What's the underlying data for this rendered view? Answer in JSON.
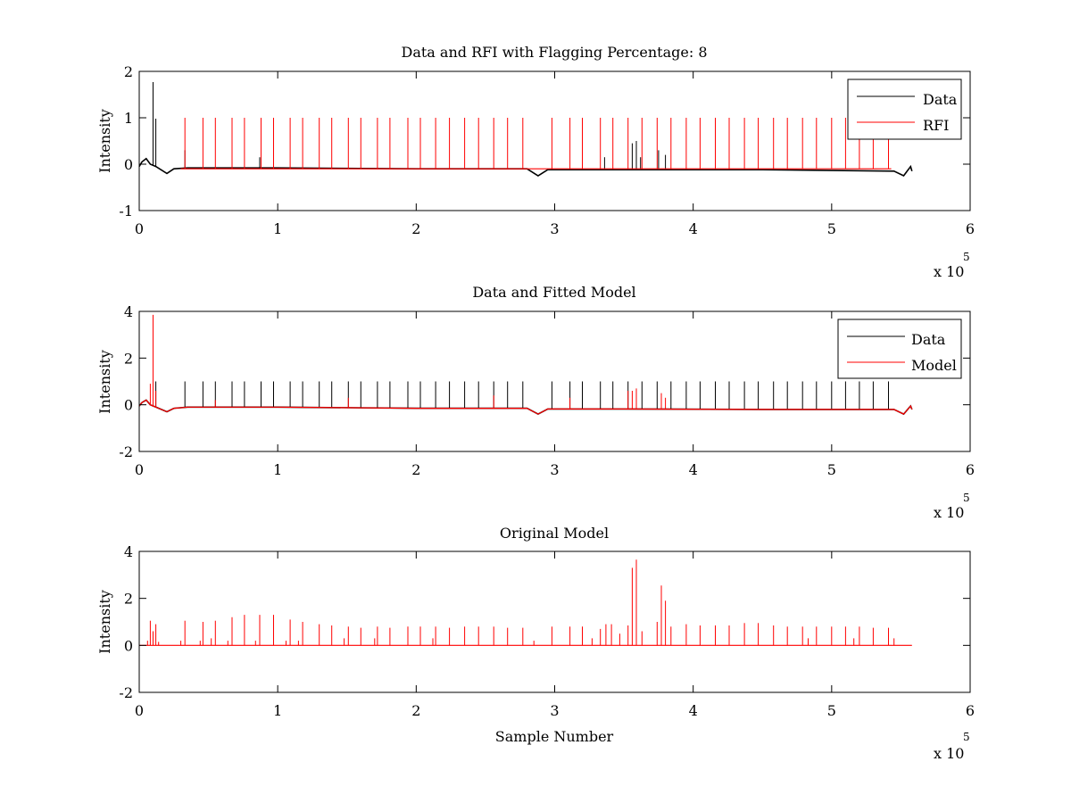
{
  "colors": {
    "data_line": "#000000",
    "red_line": "#ff0000",
    "axes": "#000000",
    "background": "#ffffff"
  },
  "chart_data": [
    {
      "type": "line",
      "title": "Data and RFI with Flagging Percentage: 8",
      "xlabel": "",
      "ylabel": "Intensity",
      "xlim": [
        0,
        6
      ],
      "ylim": [
        -1,
        2
      ],
      "x_ticks": [
        "0",
        "1",
        "2",
        "3",
        "4",
        "5",
        "6"
      ],
      "y_ticks": [
        "-1",
        "0",
        "1",
        "2"
      ],
      "x_exponent": {
        "base": "x 10",
        "power": "5"
      },
      "legend_position": "top-right",
      "series": [
        {
          "name": "Data",
          "color": "#000000",
          "baseline": [
            [
              0,
              -0.05
            ],
            [
              0.02,
              0.05
            ],
            [
              0.05,
              0.12
            ],
            [
              0.08,
              0.0
            ],
            [
              0.12,
              -0.05
            ],
            [
              0.2,
              -0.2
            ],
            [
              0.25,
              -0.1
            ],
            [
              0.35,
              -0.08
            ],
            [
              1.0,
              -0.08
            ],
            [
              2.0,
              -0.1
            ],
            [
              2.8,
              -0.1
            ],
            [
              2.88,
              -0.25
            ],
            [
              2.95,
              -0.12
            ],
            [
              3.5,
              -0.12
            ],
            [
              4.5,
              -0.12
            ],
            [
              5.45,
              -0.15
            ],
            [
              5.52,
              -0.25
            ],
            [
              5.57,
              -0.05
            ],
            [
              5.58,
              -0.15
            ]
          ],
          "spikes": [
            [
              0.1,
              1.77
            ],
            [
              0.12,
              0.98
            ],
            [
              0.33,
              0.3
            ],
            [
              0.87,
              0.15
            ],
            [
              3.36,
              0.15
            ],
            [
              3.56,
              0.45
            ],
            [
              3.59,
              0.5
            ],
            [
              3.62,
              0.15
            ],
            [
              3.75,
              0.3
            ],
            [
              3.8,
              0.2
            ]
          ]
        },
        {
          "name": "RFI",
          "color": "#ff0000",
          "baseline": [
            [
              0.3,
              -0.1
            ],
            [
              5.43,
              -0.1
            ]
          ],
          "spikes": [
            [
              0.33,
              1.0
            ],
            [
              0.46,
              1.0
            ],
            [
              0.55,
              1.0
            ],
            [
              0.67,
              1.0
            ],
            [
              0.76,
              1.0
            ],
            [
              0.88,
              1.0
            ],
            [
              0.97,
              1.0
            ],
            [
              1.09,
              1.0
            ],
            [
              1.18,
              1.0
            ],
            [
              1.3,
              1.0
            ],
            [
              1.39,
              1.0
            ],
            [
              1.51,
              1.0
            ],
            [
              1.6,
              1.0
            ],
            [
              1.72,
              1.0
            ],
            [
              1.81,
              1.0
            ],
            [
              1.94,
              1.0
            ],
            [
              2.03,
              1.0
            ],
            [
              2.14,
              1.0
            ],
            [
              2.24,
              1.0
            ],
            [
              2.35,
              1.0
            ],
            [
              2.45,
              1.0
            ],
            [
              2.56,
              1.0
            ],
            [
              2.66,
              1.0
            ],
            [
              2.77,
              1.0
            ],
            [
              2.98,
              1.0
            ],
            [
              3.11,
              1.0
            ],
            [
              3.2,
              1.0
            ],
            [
              3.33,
              1.0
            ],
            [
              3.42,
              1.0
            ],
            [
              3.53,
              1.0
            ],
            [
              3.63,
              1.0
            ],
            [
              3.74,
              1.0
            ],
            [
              3.84,
              1.0
            ],
            [
              3.95,
              1.0
            ],
            [
              4.05,
              1.0
            ],
            [
              4.16,
              1.0
            ],
            [
              4.26,
              1.0
            ],
            [
              4.37,
              1.0
            ],
            [
              4.47,
              1.0
            ],
            [
              4.58,
              1.0
            ],
            [
              4.68,
              1.0
            ],
            [
              4.79,
              1.0
            ],
            [
              4.89,
              1.0
            ],
            [
              5.0,
              1.0
            ],
            [
              5.1,
              1.0
            ],
            [
              5.2,
              1.0
            ],
            [
              5.3,
              1.0
            ],
            [
              5.41,
              1.0
            ]
          ]
        }
      ]
    },
    {
      "type": "line",
      "title": "Data and Fitted Model",
      "xlabel": "",
      "ylabel": "Intensity",
      "xlim": [
        0,
        6
      ],
      "ylim": [
        -2,
        4
      ],
      "x_ticks": [
        "0",
        "1",
        "2",
        "3",
        "4",
        "5",
        "6"
      ],
      "y_ticks": [
        "-2",
        "0",
        "2",
        "4"
      ],
      "x_exponent": {
        "base": "x 10",
        "power": "5"
      },
      "legend_position": "top-right",
      "series": [
        {
          "name": "Data",
          "color": "#000000",
          "baseline": [
            [
              0,
              -0.05
            ],
            [
              0.02,
              0.1
            ],
            [
              0.05,
              0.2
            ],
            [
              0.08,
              0.0
            ],
            [
              0.12,
              -0.1
            ],
            [
              0.2,
              -0.3
            ],
            [
              0.25,
              -0.15
            ],
            [
              0.35,
              -0.1
            ],
            [
              1.0,
              -0.1
            ],
            [
              2.0,
              -0.15
            ],
            [
              2.8,
              -0.15
            ],
            [
              2.88,
              -0.4
            ],
            [
              2.95,
              -0.18
            ],
            [
              3.5,
              -0.18
            ],
            [
              4.5,
              -0.2
            ],
            [
              5.45,
              -0.2
            ],
            [
              5.52,
              -0.4
            ],
            [
              5.57,
              -0.05
            ],
            [
              5.58,
              -0.2
            ]
          ],
          "spikes": [
            [
              0.1,
              1.75
            ],
            [
              0.12,
              1.0
            ],
            [
              0.33,
              1.0
            ],
            [
              0.46,
              1.0
            ],
            [
              0.55,
              1.0
            ],
            [
              0.67,
              1.0
            ],
            [
              0.76,
              1.0
            ],
            [
              0.88,
              1.0
            ],
            [
              0.97,
              1.0
            ],
            [
              1.09,
              1.0
            ],
            [
              1.18,
              1.0
            ],
            [
              1.3,
              1.0
            ],
            [
              1.39,
              1.0
            ],
            [
              1.51,
              1.0
            ],
            [
              1.6,
              1.0
            ],
            [
              1.72,
              1.0
            ],
            [
              1.81,
              1.0
            ],
            [
              1.94,
              1.0
            ],
            [
              2.03,
              1.0
            ],
            [
              2.14,
              1.0
            ],
            [
              2.24,
              1.0
            ],
            [
              2.35,
              1.0
            ],
            [
              2.45,
              1.0
            ],
            [
              2.56,
              1.0
            ],
            [
              2.66,
              1.0
            ],
            [
              2.77,
              1.0
            ],
            [
              2.98,
              1.0
            ],
            [
              3.11,
              1.0
            ],
            [
              3.2,
              1.0
            ],
            [
              3.33,
              1.0
            ],
            [
              3.42,
              1.0
            ],
            [
              3.53,
              1.0
            ],
            [
              3.63,
              1.0
            ],
            [
              3.74,
              1.0
            ],
            [
              3.84,
              1.0
            ],
            [
              3.95,
              1.0
            ],
            [
              4.05,
              1.0
            ],
            [
              4.16,
              1.0
            ],
            [
              4.26,
              1.0
            ],
            [
              4.37,
              1.0
            ],
            [
              4.47,
              1.0
            ],
            [
              4.58,
              1.0
            ],
            [
              4.68,
              1.0
            ],
            [
              4.79,
              1.0
            ],
            [
              4.89,
              1.0
            ],
            [
              5.0,
              1.0
            ],
            [
              5.1,
              1.0
            ],
            [
              5.2,
              1.0
            ],
            [
              5.3,
              1.0
            ],
            [
              5.41,
              1.0
            ]
          ]
        },
        {
          "name": "Model",
          "color": "#ff0000",
          "baseline": [
            [
              0,
              -0.05
            ],
            [
              0.02,
              0.1
            ],
            [
              0.05,
              0.2
            ],
            [
              0.08,
              0.0
            ],
            [
              0.12,
              -0.1
            ],
            [
              0.2,
              -0.3
            ],
            [
              0.25,
              -0.15
            ],
            [
              0.35,
              -0.1
            ],
            [
              1.0,
              -0.1
            ],
            [
              2.0,
              -0.15
            ],
            [
              2.8,
              -0.15
            ],
            [
              2.88,
              -0.4
            ],
            [
              2.95,
              -0.18
            ],
            [
              3.5,
              -0.18
            ],
            [
              4.5,
              -0.2
            ],
            [
              5.45,
              -0.2
            ],
            [
              5.52,
              -0.4
            ],
            [
              5.57,
              -0.05
            ],
            [
              5.58,
              -0.2
            ]
          ],
          "spikes": [
            [
              0.08,
              0.9
            ],
            [
              0.1,
              3.85
            ],
            [
              0.12,
              0.6
            ],
            [
              0.55,
              0.2
            ],
            [
              1.51,
              0.3
            ],
            [
              2.56,
              0.4
            ],
            [
              3.11,
              0.3
            ],
            [
              3.53,
              0.6
            ],
            [
              3.56,
              0.6
            ],
            [
              3.59,
              0.7
            ],
            [
              3.77,
              0.5
            ],
            [
              3.8,
              0.3
            ]
          ]
        }
      ]
    },
    {
      "type": "line",
      "title": "Original Model",
      "xlabel": "Sample Number",
      "ylabel": "Intensity",
      "xlim": [
        0,
        6
      ],
      "ylim": [
        -2,
        4
      ],
      "x_ticks": [
        "0",
        "1",
        "2",
        "3",
        "4",
        "5",
        "6"
      ],
      "y_ticks": [
        "-2",
        "0",
        "2",
        "4"
      ],
      "x_exponent": {
        "base": "x 10",
        "power": "5"
      },
      "legend_position": "none",
      "series": [
        {
          "name": "Original Model",
          "color": "#ff0000",
          "baseline": [
            [
              0,
              0
            ],
            [
              5.58,
              0
            ]
          ],
          "spikes": [
            [
              0.06,
              0.2
            ],
            [
              0.08,
              1.05
            ],
            [
              0.1,
              0.6
            ],
            [
              0.12,
              0.9
            ],
            [
              0.14,
              0.15
            ],
            [
              0.3,
              0.2
            ],
            [
              0.33,
              1.05
            ],
            [
              0.44,
              0.2
            ],
            [
              0.46,
              1.0
            ],
            [
              0.52,
              0.3
            ],
            [
              0.55,
              1.05
            ],
            [
              0.64,
              0.2
            ],
            [
              0.67,
              1.2
            ],
            [
              0.76,
              1.3
            ],
            [
              0.84,
              0.2
            ],
            [
              0.87,
              1.3
            ],
            [
              0.97,
              1.3
            ],
            [
              1.06,
              0.2
            ],
            [
              1.09,
              1.1
            ],
            [
              1.15,
              0.2
            ],
            [
              1.18,
              1.0
            ],
            [
              1.3,
              0.9
            ],
            [
              1.39,
              0.85
            ],
            [
              1.48,
              0.3
            ],
            [
              1.51,
              0.8
            ],
            [
              1.6,
              0.75
            ],
            [
              1.7,
              0.3
            ],
            [
              1.72,
              0.8
            ],
            [
              1.81,
              0.75
            ],
            [
              1.94,
              0.8
            ],
            [
              2.03,
              0.8
            ],
            [
              2.12,
              0.3
            ],
            [
              2.14,
              0.8
            ],
            [
              2.24,
              0.75
            ],
            [
              2.35,
              0.8
            ],
            [
              2.45,
              0.8
            ],
            [
              2.56,
              0.8
            ],
            [
              2.66,
              0.75
            ],
            [
              2.77,
              0.75
            ],
            [
              2.85,
              0.2
            ],
            [
              2.98,
              0.8
            ],
            [
              3.11,
              0.8
            ],
            [
              3.2,
              0.8
            ],
            [
              3.27,
              0.3
            ],
            [
              3.33,
              0.7
            ],
            [
              3.37,
              0.9
            ],
            [
              3.41,
              0.9
            ],
            [
              3.47,
              0.5
            ],
            [
              3.53,
              0.85
            ],
            [
              3.56,
              3.3
            ],
            [
              3.59,
              3.65
            ],
            [
              3.63,
              0.6
            ],
            [
              3.74,
              1.0
            ],
            [
              3.77,
              2.55
            ],
            [
              3.8,
              1.9
            ],
            [
              3.84,
              0.8
            ],
            [
              3.95,
              0.9
            ],
            [
              4.05,
              0.85
            ],
            [
              4.16,
              0.85
            ],
            [
              4.26,
              0.85
            ],
            [
              4.37,
              0.95
            ],
            [
              4.47,
              0.95
            ],
            [
              4.58,
              0.85
            ],
            [
              4.68,
              0.8
            ],
            [
              4.79,
              0.8
            ],
            [
              4.83,
              0.3
            ],
            [
              4.89,
              0.8
            ],
            [
              5.0,
              0.8
            ],
            [
              5.1,
              0.8
            ],
            [
              5.16,
              0.3
            ],
            [
              5.2,
              0.8
            ],
            [
              5.3,
              0.75
            ],
            [
              5.41,
              0.75
            ],
            [
              5.45,
              0.3
            ]
          ]
        }
      ]
    }
  ]
}
